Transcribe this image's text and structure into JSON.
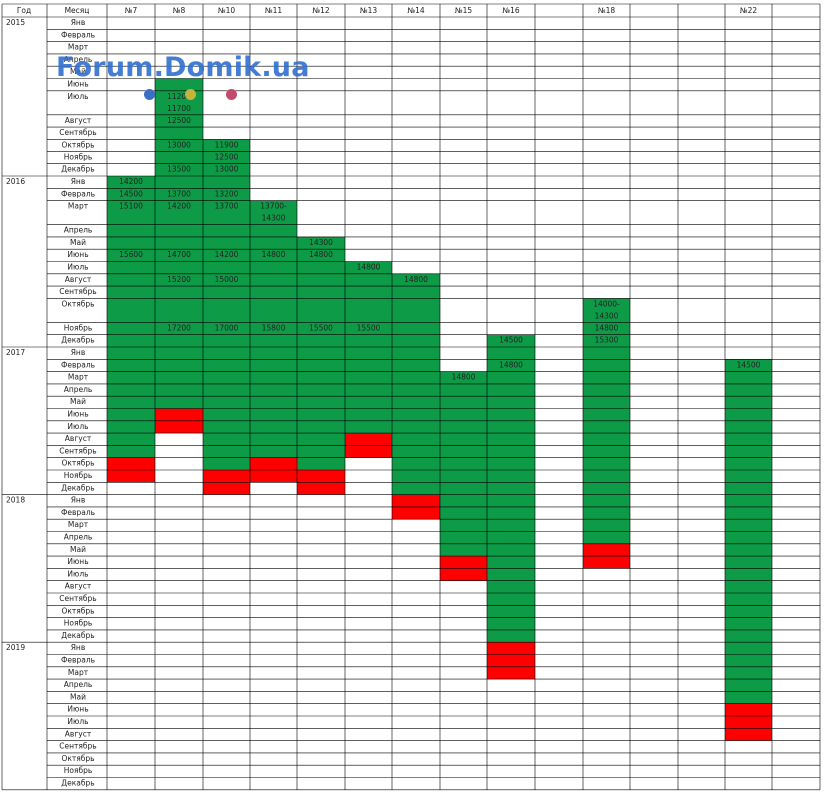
{
  "header": {
    "year_label": "Год",
    "month_label": "Месяц",
    "columns": [
      "№7",
      "№8",
      "№10",
      "№11",
      "№12",
      "№13",
      "№14",
      "№15",
      "№16",
      "",
      "№18",
      "",
      "№22"
    ]
  },
  "years": [
    {
      "label": "2015",
      "months": [
        "Янв",
        "Февраль",
        "Март",
        "Апрель",
        "Май",
        "Июнь",
        "Июль",
        "Август",
        "Сентябрь",
        "Октябрь",
        "Ноябрь",
        "Декабрь"
      ]
    },
    {
      "label": "2016",
      "months": [
        "Янв",
        "Февраль",
        "Март",
        "Апрель",
        "Май",
        "Июнь",
        "Июль",
        "Август",
        "Сентябрь",
        "Октябрь",
        "Ноябрь",
        "Декабрь"
      ]
    },
    {
      "label": "2017",
      "months": [
        "Янв",
        "Февраль",
        "Март",
        "Апрель",
        "Май",
        "Июнь",
        "Июль",
        "Август",
        "Сентябрь",
        "Октябрь",
        "Ноябрь",
        "Декабрь"
      ]
    },
    {
      "label": "2018",
      "months": [
        "Янв",
        "Февраль",
        "Март",
        "Апрель",
        "Май",
        "Июнь",
        "Июль",
        "Август",
        "Сентябрь",
        "Октябрь",
        "Ноябрь",
        "Декабрь"
      ]
    },
    {
      "label": "2019",
      "months": [
        "Янв",
        "Февраль",
        "Март",
        "Апрель",
        "Май",
        "Июнь",
        "Июль",
        "Август",
        "Сентябрь",
        "Октябрь",
        "Ноябрь",
        "Декабрь"
      ]
    }
  ],
  "colors": {
    "sale": "#0e9b47",
    "sold": "#ff0000",
    "grid": "#000000"
  },
  "legend": {
    "sale": "green",
    "sold": "red"
  },
  "spans": [
    {
      "col": 0,
      "from": 12,
      "to": 32,
      "status": "sale"
    },
    {
      "col": 0,
      "from": 33,
      "to": 34,
      "status": "sold"
    },
    {
      "col": 1,
      "from": 5,
      "to": 28,
      "status": "sale"
    },
    {
      "col": 1,
      "from": 29,
      "to": 30,
      "status": "sold"
    },
    {
      "col": 2,
      "from": 9,
      "to": 33,
      "status": "sale"
    },
    {
      "col": 2,
      "from": 34,
      "to": 35,
      "status": "sold"
    },
    {
      "col": 3,
      "from": 14,
      "to": 32,
      "status": "sale"
    },
    {
      "col": 3,
      "from": 33,
      "to": 34,
      "status": "sold"
    },
    {
      "col": 4,
      "from": 16,
      "to": 33,
      "status": "sale"
    },
    {
      "col": 4,
      "from": 34,
      "to": 35,
      "status": "sold"
    },
    {
      "col": 5,
      "from": 18,
      "to": 30,
      "status": "sale"
    },
    {
      "col": 5,
      "from": 31,
      "to": 32,
      "status": "sold"
    },
    {
      "col": 6,
      "from": 19,
      "to": 35,
      "status": "sale"
    },
    {
      "col": 6,
      "from": 36,
      "to": 37,
      "status": "sold"
    },
    {
      "col": 7,
      "from": 26,
      "to": 40,
      "status": "sale"
    },
    {
      "col": 7,
      "from": 41,
      "to": 42,
      "status": "sold"
    },
    {
      "col": 8,
      "from": 23,
      "to": 47,
      "status": "sale"
    },
    {
      "col": 8,
      "from": 48,
      "to": 50,
      "status": "sold"
    },
    {
      "col": 10,
      "from": 21,
      "to": 39,
      "status": "sale"
    },
    {
      "col": 10,
      "from": 40,
      "to": 41,
      "status": "sold"
    },
    {
      "col": 12,
      "from": 25,
      "to": 52,
      "status": "sale"
    },
    {
      "col": 12,
      "from": 53,
      "to": 55,
      "status": "sold"
    }
  ],
  "cells": [
    {
      "col": 1,
      "row": 6,
      "text": "11200"
    },
    {
      "col": 1,
      "row": 6,
      "line": 2,
      "text": "11700"
    },
    {
      "col": 1,
      "row": 7,
      "text": "12500"
    },
    {
      "col": 1,
      "row": 9,
      "text": "13000"
    },
    {
      "col": 2,
      "row": 9,
      "text": "11900"
    },
    {
      "col": 2,
      "row": 10,
      "text": "12500"
    },
    {
      "col": 1,
      "row": 11,
      "text": "13500"
    },
    {
      "col": 2,
      "row": 11,
      "text": "13000"
    },
    {
      "col": 0,
      "row": 12,
      "text": "14200"
    },
    {
      "col": 0,
      "row": 13,
      "text": "14500"
    },
    {
      "col": 1,
      "row": 13,
      "text": "13700"
    },
    {
      "col": 2,
      "row": 13,
      "text": "13200"
    },
    {
      "col": 0,
      "row": 14,
      "text": "15100"
    },
    {
      "col": 1,
      "row": 14,
      "text": "14200"
    },
    {
      "col": 2,
      "row": 14,
      "text": "13700"
    },
    {
      "col": 3,
      "row": 14,
      "text": "13700-"
    },
    {
      "col": 3,
      "row": 14,
      "line": 2,
      "text": "14300"
    },
    {
      "col": 4,
      "row": 16,
      "text": "14300"
    },
    {
      "col": 0,
      "row": 17,
      "text": "15600"
    },
    {
      "col": 1,
      "row": 17,
      "text": "14700"
    },
    {
      "col": 2,
      "row": 17,
      "text": "14200"
    },
    {
      "col": 3,
      "row": 17,
      "text": "14800"
    },
    {
      "col": 4,
      "row": 17,
      "text": "14800"
    },
    {
      "col": 5,
      "row": 18,
      "text": "14800"
    },
    {
      "col": 1,
      "row": 19,
      "text": "15200"
    },
    {
      "col": 2,
      "row": 19,
      "text": "15000"
    },
    {
      "col": 6,
      "row": 19,
      "text": "14800"
    },
    {
      "col": 10,
      "row": 21,
      "text": "14000-"
    },
    {
      "col": 10,
      "row": 21,
      "line": 2,
      "text": "14300"
    },
    {
      "col": 1,
      "row": 22,
      "text": "17200"
    },
    {
      "col": 2,
      "row": 22,
      "text": "17000"
    },
    {
      "col": 3,
      "row": 22,
      "text": "15800"
    },
    {
      "col": 4,
      "row": 22,
      "text": "15500"
    },
    {
      "col": 5,
      "row": 22,
      "text": "15500"
    },
    {
      "col": 10,
      "row": 22,
      "text": "14800"
    },
    {
      "col": 8,
      "row": 23,
      "text": "14500"
    },
    {
      "col": 10,
      "row": 23,
      "text": "15300"
    },
    {
      "col": 8,
      "row": 25,
      "text": "14800"
    },
    {
      "col": 12,
      "row": 25,
      "text": "14500"
    },
    {
      "col": 7,
      "row": 26,
      "text": "14800"
    }
  ],
  "watermark": {
    "text": "Forum.Domik.ua",
    "dot_colors": [
      "#3a6fc4",
      "#c7b23a",
      "#c24b6b"
    ]
  }
}
